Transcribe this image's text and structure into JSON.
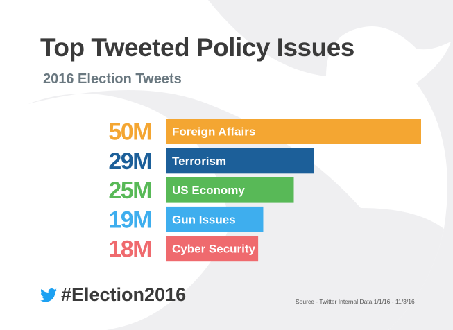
{
  "chart_data": {
    "type": "bar",
    "orientation": "horizontal",
    "title": "Top Tweeted Policy Issues",
    "subtitle": "2016 Election Tweets",
    "categories": [
      "Foreign Affairs",
      "Terrorism",
      "US Economy",
      "Gun Issues",
      "Cyber Security"
    ],
    "values": [
      50,
      29,
      25,
      19,
      18
    ],
    "value_labels": [
      "50M",
      "29M",
      "25M",
      "19M",
      "18M"
    ],
    "colors": [
      "#f4a632",
      "#1c5f99",
      "#58b957",
      "#3eaeee",
      "#ef6a6e"
    ],
    "unit": "M",
    "xlim": [
      0,
      50
    ],
    "grid": false,
    "legend": "none"
  },
  "footer": {
    "hashtag": "#Election2016",
    "icon": "twitter-bird-icon",
    "source": "Source - Twitter Internal Data 1/1/16 - 11/3/16"
  },
  "colors": {
    "bird_icon": "#1da1f2",
    "background_bird": "#efeff1",
    "text": "#3a3a3a"
  }
}
